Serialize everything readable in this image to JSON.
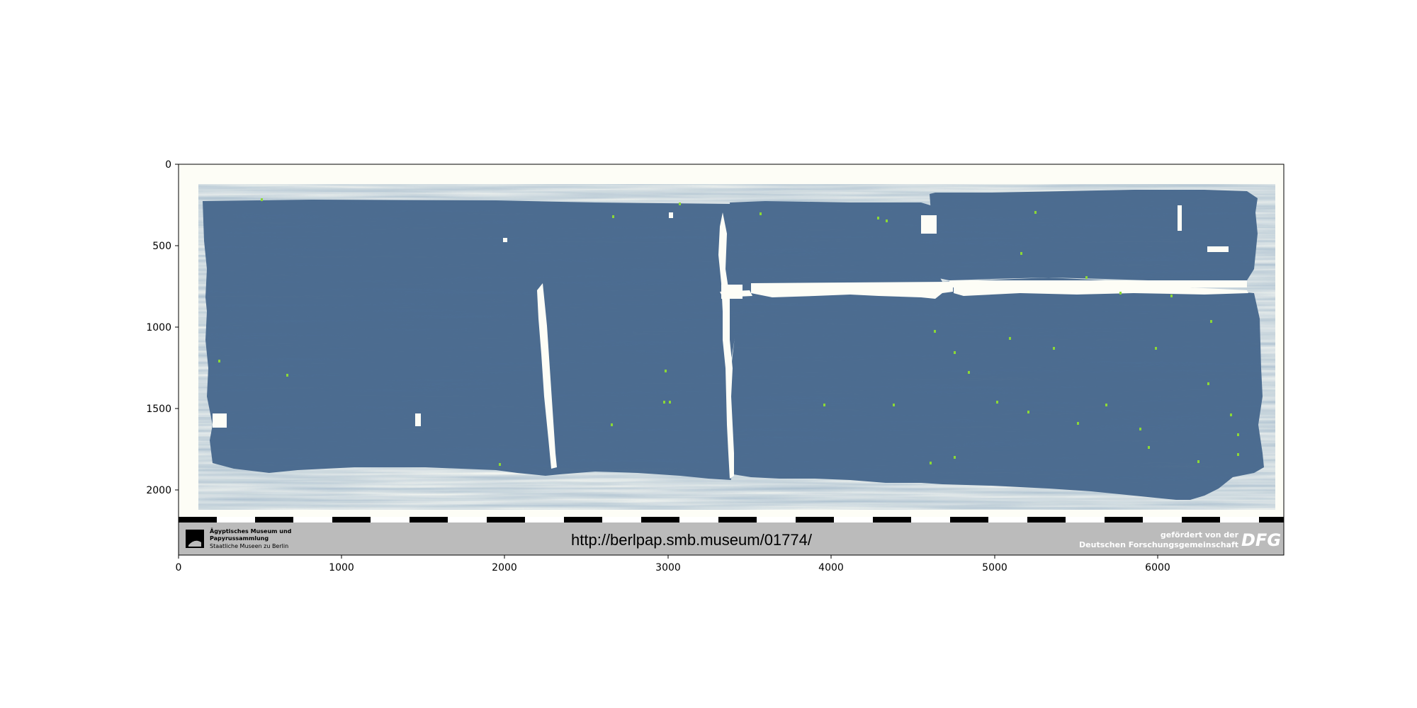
{
  "image": {
    "subject": "papyrus scan",
    "papyrus_color": "#4d6e93",
    "background_color": "#fdfdf6",
    "marker_color": "#8bd836"
  },
  "axes": {
    "y_ticks": [
      "0",
      "500",
      "1000",
      "1500",
      "2000"
    ],
    "x_ticks": [
      "0",
      "1000",
      "2000",
      "3000",
      "4000",
      "5000",
      "6000"
    ],
    "x_range": [
      0,
      6770
    ],
    "y_range": [
      0,
      2400
    ]
  },
  "footer": {
    "museum_line1": "Ägyptisches Museum und",
    "museum_line2": "Papyrussammlung",
    "museum_line3": "Staatliche Museen zu Berlin",
    "url": "http://berlpap.smb.museum/01774/",
    "funding_line1": "gefördert von der",
    "funding_line2": "Deutschen Forschungsgemeinschaft",
    "dfg_logo": "DFG",
    "band_color": "#bbbbbb"
  }
}
